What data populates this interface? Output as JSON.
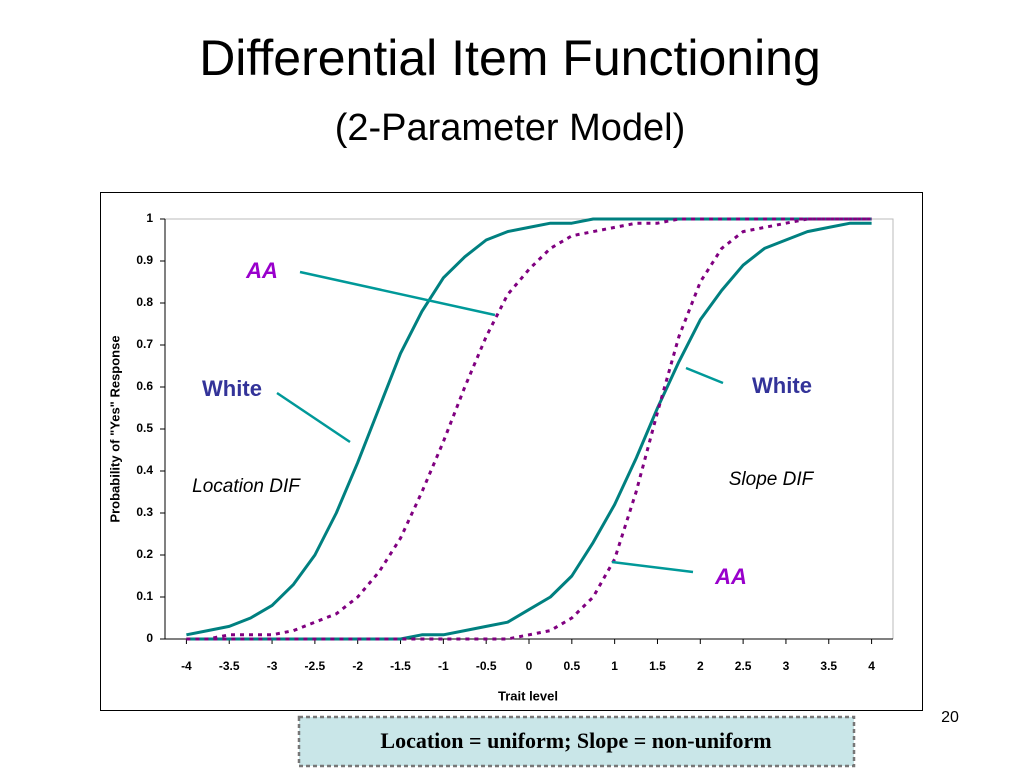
{
  "chart_data": {
    "type": "line",
    "title": "Differential Item Functioning",
    "subtitle": "(2-Parameter Model)",
    "xlabel": "Trait level",
    "ylabel": "Probability of \"Yes\" Response",
    "x": [
      -4,
      -3.75,
      -3.5,
      -3.25,
      -3,
      -2.75,
      -2.5,
      -2.25,
      -2,
      -1.75,
      -1.5,
      -1.25,
      -1,
      -0.75,
      -0.5,
      -0.25,
      0,
      0.25,
      0.5,
      0.75,
      1,
      1.25,
      1.5,
      1.75,
      2,
      2.25,
      2.5,
      2.75,
      3,
      3.25,
      3.5,
      3.75,
      4
    ],
    "series": [
      {
        "color": "#008080",
        "line_style": "solid",
        "values": [
          0.01,
          0.02,
          0.03,
          0.05,
          0.08,
          0.13,
          0.2,
          0.3,
          0.42,
          0.55,
          0.68,
          0.78,
          0.86,
          0.91,
          0.95,
          0.97,
          0.98,
          0.99,
          0.99,
          1,
          1,
          1,
          1,
          1,
          1,
          1,
          1,
          1,
          1,
          1,
          1,
          1,
          1
        ]
      },
      {
        "color": "#800080",
        "line_style": "dashed",
        "values": [
          0,
          0,
          0.01,
          0.01,
          0.01,
          0.02,
          0.04,
          0.06,
          0.1,
          0.16,
          0.24,
          0.35,
          0.47,
          0.6,
          0.72,
          0.82,
          0.88,
          0.93,
          0.96,
          0.97,
          0.98,
          0.99,
          0.99,
          1,
          1,
          1,
          1,
          1,
          1,
          1,
          1,
          1,
          1
        ]
      },
      {
        "color": "#008080",
        "line_style": "solid",
        "values": [
          0,
          0,
          0,
          0,
          0,
          0,
          0,
          0,
          0,
          0,
          0,
          0.01,
          0.01,
          0.02,
          0.03,
          0.04,
          0.07,
          0.1,
          0.15,
          0.23,
          0.32,
          0.43,
          0.55,
          0.66,
          0.76,
          0.83,
          0.89,
          0.93,
          0.95,
          0.97,
          0.98,
          0.99,
          0.99
        ]
      },
      {
        "color": "#800080",
        "line_style": "dashed",
        "values": [
          0,
          0,
          0,
          0,
          0,
          0,
          0,
          0,
          0,
          0,
          0,
          0,
          0,
          0,
          0,
          0,
          0.01,
          0.02,
          0.05,
          0.1,
          0.19,
          0.35,
          0.54,
          0.72,
          0.85,
          0.93,
          0.97,
          0.98,
          0.99,
          1,
          1,
          1,
          1
        ]
      }
    ],
    "xlim": [
      -4.25,
      4.25
    ],
    "ylim": [
      0,
      1
    ],
    "xticks": [
      -4,
      -3.5,
      -3,
      -2.5,
      -2,
      -1.5,
      -1,
      -0.5,
      0,
      0.5,
      1,
      1.5,
      2,
      2.5,
      3,
      3.5,
      4
    ],
    "yticks": [
      0,
      0.1,
      0.2,
      0.3,
      0.4,
      0.5,
      0.6,
      0.7,
      0.8,
      0.9,
      1
    ],
    "grid": false,
    "annotations": [
      "AA",
      "White",
      "Location DIF",
      "White",
      "Slope DIF",
      "AA"
    ]
  },
  "footer": "Location = uniform; Slope = non-uniform",
  "page_number": "20"
}
